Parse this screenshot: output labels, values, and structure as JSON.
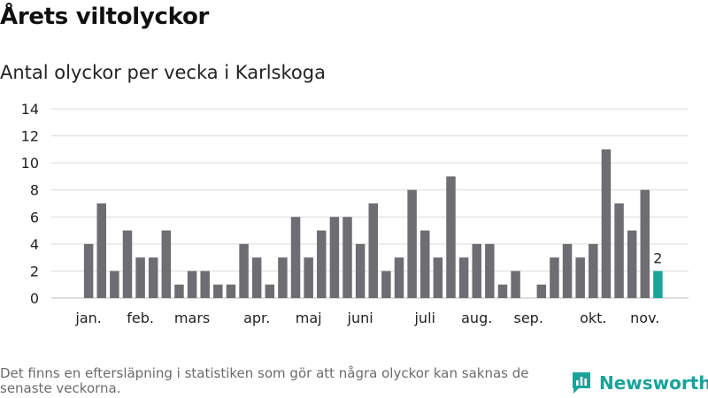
{
  "title": "Årets viltolyckor",
  "subtitle": "Antal olyckor per vecka i Karlskoga",
  "footnote": "Det finns en eftersläpning i statistiken som gör att några olyckor kan saknas de senaste veckorna.",
  "brand": {
    "name": "Newsworthy",
    "icon": "newsworthy-logo-icon",
    "color": "#1aa39a"
  },
  "chart_data": {
    "type": "bar",
    "title": "Antal olyckor per vecka i Karlskoga",
    "xlabel": "",
    "ylabel": "",
    "ylim": [
      0,
      14
    ],
    "yticks": [
      0,
      2,
      4,
      6,
      8,
      10,
      12,
      14
    ],
    "grid": true,
    "bar_color": "#6e6d71",
    "highlight_color": "#1aa39a",
    "month_labels": [
      {
        "label": "jan.",
        "week": 2
      },
      {
        "label": "feb.",
        "week": 6
      },
      {
        "label": "mars",
        "week": 10
      },
      {
        "label": "apr.",
        "week": 15
      },
      {
        "label": "maj",
        "week": 19
      },
      {
        "label": "juni",
        "week": 23
      },
      {
        "label": "juli",
        "week": 28
      },
      {
        "label": "aug.",
        "week": 32
      },
      {
        "label": "sep.",
        "week": 36
      },
      {
        "label": "okt.",
        "week": 41
      },
      {
        "label": "nov.",
        "week": 45
      }
    ],
    "weeks": [
      1,
      2,
      3,
      4,
      5,
      6,
      7,
      8,
      9,
      10,
      11,
      12,
      13,
      14,
      15,
      16,
      17,
      18,
      19,
      20,
      21,
      22,
      23,
      24,
      25,
      26,
      27,
      28,
      29,
      30,
      31,
      32,
      33,
      34,
      35,
      36,
      37,
      38,
      39,
      40,
      41,
      42,
      43,
      44,
      45,
      46
    ],
    "values": [
      0,
      4,
      7,
      2,
      5,
      3,
      3,
      5,
      1,
      2,
      2,
      1,
      1,
      4,
      3,
      1,
      3,
      6,
      3,
      5,
      6,
      6,
      4,
      7,
      2,
      3,
      8,
      5,
      3,
      9,
      3,
      4,
      4,
      1,
      2,
      0,
      1,
      3,
      4,
      3,
      4,
      11,
      7,
      5,
      8,
      2
    ],
    "highlight_last": true,
    "highlight_label": "2"
  }
}
